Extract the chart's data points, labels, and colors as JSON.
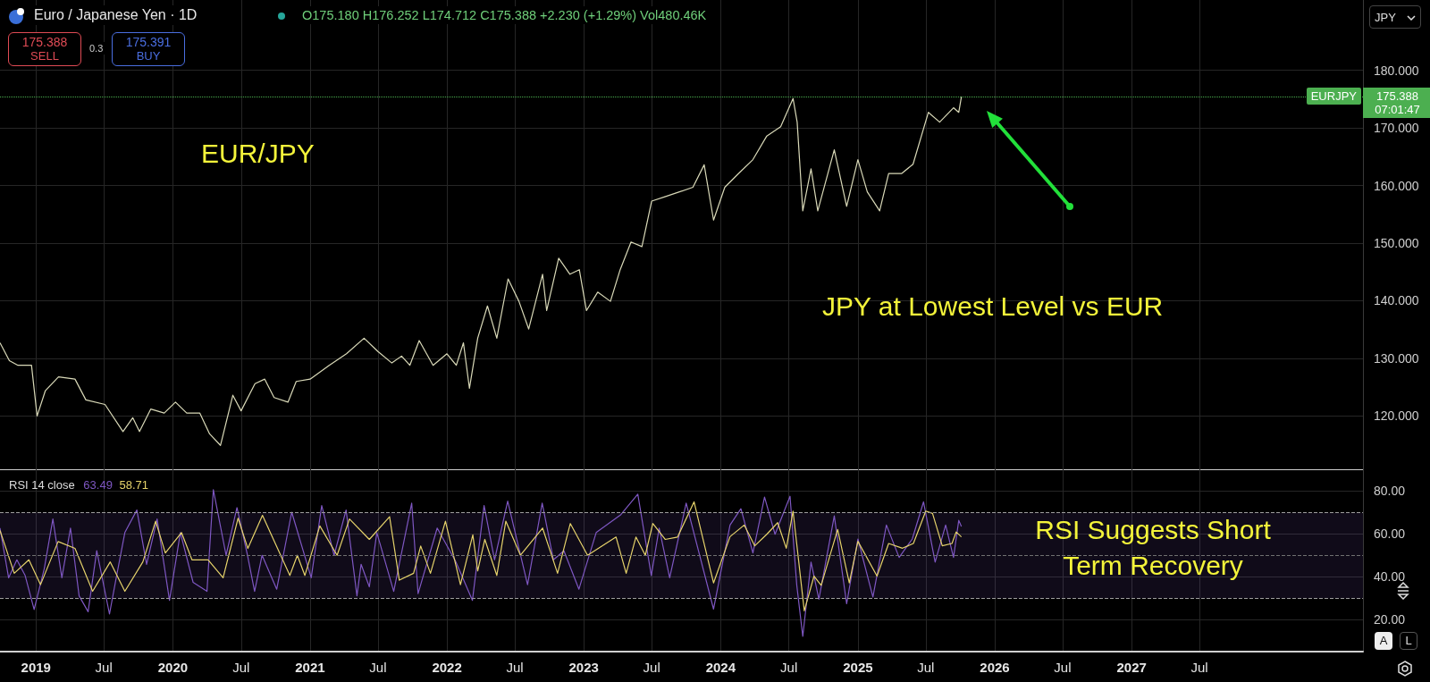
{
  "chart_data": [
    {
      "type": "line",
      "color": "#d9d9b8",
      "line_style": "solid",
      "grid": true,
      "tick_labels": "y",
      "xlim": [
        "2018-09-27",
        "2028-09-09"
      ],
      "xticks": [
        {
          "value": "2019-01-01",
          "label": null
        },
        {
          "value": "2019-07-01",
          "label": null
        },
        {
          "value": "2020-01-01",
          "label": null
        },
        {
          "value": "2020-07-01",
          "label": null
        },
        {
          "value": "2021-01-01",
          "label": null
        },
        {
          "value": "2021-07-01",
          "label": null
        },
        {
          "value": "2022-01-01",
          "label": null
        },
        {
          "value": "2022-07-01",
          "label": null
        },
        {
          "value": "2023-01-01",
          "label": null
        },
        {
          "value": "2023-07-01",
          "label": null
        },
        {
          "value": "2024-01-01",
          "label": null
        },
        {
          "value": "2024-07-01",
          "label": null
        },
        {
          "value": "2025-01-01",
          "label": null
        },
        {
          "value": "2025-07-01",
          "label": null
        },
        {
          "value": "2026-01-01",
          "label": null
        },
        {
          "value": "2026-07-01",
          "label": null
        },
        {
          "value": "2027-01-01",
          "label": null
        },
        {
          "value": "2027-07-01",
          "label": null
        }
      ],
      "ylim": [
        110.6,
        192.2
      ],
      "yticks": [
        {
          "value": 120,
          "label": "120.000"
        },
        {
          "value": 130,
          "label": "130.000"
        },
        {
          "value": 140,
          "label": "140.000"
        },
        {
          "value": 150,
          "label": "150.000"
        },
        {
          "value": 160,
          "label": "160.000"
        },
        {
          "value": 170,
          "label": "170.000"
        },
        {
          "value": 180,
          "label": "180.000"
        }
      ],
      "x": [
        "2018-09-27",
        "2018-10-22",
        "2018-11-14",
        "2018-12-20",
        "2019-01-04",
        "2019-01-26",
        "2019-03-02",
        "2019-04-15",
        "2019-05-14",
        "2019-07-04",
        "2019-08-21",
        "2019-09-16",
        "2019-10-04",
        "2019-11-03",
        "2019-12-09",
        "2020-01-08",
        "2020-02-07",
        "2020-03-13",
        "2020-04-08",
        "2020-05-07",
        "2020-06-09",
        "2020-07-01",
        "2020-08-07",
        "2020-09-02",
        "2020-09-27",
        "2020-11-03",
        "2020-11-25",
        "2021-01-01",
        "2021-02-21",
        "2021-04-08",
        "2021-05-25",
        "2021-07-01",
        "2021-08-07",
        "2021-09-02",
        "2021-09-24",
        "2021-10-19",
        "2021-11-25",
        "2022-01-01",
        "2022-01-26",
        "2022-02-14",
        "2022-03-02",
        "2022-03-24",
        "2022-04-19",
        "2022-05-14",
        "2022-06-13",
        "2022-07-12",
        "2022-08-07",
        "2022-09-13",
        "2022-09-24",
        "2022-10-26",
        "2022-11-25",
        "2022-12-20",
        "2023-01-08",
        "2023-02-07",
        "2023-03-13",
        "2023-04-08",
        "2023-05-07",
        "2023-06-05",
        "2023-07-01",
        "2023-08-07",
        "2023-09-13",
        "2023-10-19",
        "2023-11-18",
        "2023-12-13",
        "2024-01-12",
        "2024-02-18",
        "2024-03-27",
        "2024-05-03",
        "2024-06-09",
        "2024-07-12",
        "2024-07-23",
        "2024-08-07",
        "2024-08-29",
        "2024-09-16",
        "2024-10-30",
        "2024-12-02",
        "2025-01-01",
        "2025-01-26",
        "2025-02-28",
        "2025-03-24",
        "2025-04-28",
        "2025-05-28",
        "2025-07-08",
        "2025-08-07",
        "2025-09-13",
        "2025-09-27",
        "2025-10-04"
      ],
      "values": [
        132.7,
        129.6,
        128.8,
        128.8,
        120.0,
        124.4,
        126.8,
        126.4,
        122.8,
        122.0,
        117.3,
        119.7,
        117.3,
        121.2,
        120.5,
        122.4,
        120.5,
        120.5,
        116.9,
        114.9,
        123.6,
        120.9,
        125.6,
        126.4,
        123.2,
        122.4,
        126.0,
        126.4,
        128.8,
        130.8,
        133.5,
        131.2,
        129.2,
        130.4,
        128.8,
        133.1,
        128.8,
        130.8,
        128.8,
        132.7,
        124.8,
        133.5,
        139.1,
        133.5,
        143.8,
        139.9,
        135.1,
        144.6,
        138.3,
        147.4,
        144.6,
        145.4,
        138.3,
        141.5,
        139.9,
        145.4,
        150.2,
        149.4,
        157.3,
        158.1,
        158.9,
        159.7,
        163.6,
        154.0,
        159.7,
        162.1,
        164.5,
        168.6,
        170.2,
        175.1,
        171.0,
        155.6,
        162.9,
        155.6,
        166.2,
        156.4,
        164.5,
        158.9,
        155.6,
        162.1,
        162.1,
        163.7,
        172.7,
        171.0,
        173.5,
        172.7,
        175.4
      ],
      "ref_lines": [
        {
          "axis": "y",
          "value": 175.388,
          "label": "EURJPY",
          "color": "#4caf50",
          "line_style": "dotted"
        }
      ],
      "annotations": [
        "Euro / Japanese Yen · 1D",
        "O175.180 H176.252 L174.712 C175.388 +2.230 (+1.29%) Vol480.46K",
        "175.388",
        "SELL",
        "0.3",
        "175.391",
        "BUY",
        "JPY",
        "EUR/JPY",
        "JPY at Lowest Level vs EUR",
        "07:01:47"
      ]
    },
    {
      "type": "line",
      "grid": true,
      "line_style": "solid",
      "xlim": [
        "2018-09-27",
        "2028-09-09"
      ],
      "xticks": [
        {
          "value": "2019-01-01",
          "label": "2019"
        },
        {
          "value": "2019-07-01",
          "label": "Jul"
        },
        {
          "value": "2020-01-01",
          "label": "2020"
        },
        {
          "value": "2020-07-01",
          "label": "Jul"
        },
        {
          "value": "2021-01-01",
          "label": "2021"
        },
        {
          "value": "2021-07-01",
          "label": "Jul"
        },
        {
          "value": "2022-01-01",
          "label": "2022"
        },
        {
          "value": "2022-07-01",
          "label": "Jul"
        },
        {
          "value": "2023-01-01",
          "label": "2023"
        },
        {
          "value": "2023-07-01",
          "label": "Jul"
        },
        {
          "value": "2024-01-01",
          "label": "2024"
        },
        {
          "value": "2024-07-01",
          "label": "Jul"
        },
        {
          "value": "2025-01-01",
          "label": "2025"
        },
        {
          "value": "2025-07-01",
          "label": "Jul"
        },
        {
          "value": "2026-01-01",
          "label": "2026"
        },
        {
          "value": "2026-07-01",
          "label": "Jul"
        },
        {
          "value": "2027-01-01",
          "label": "2027"
        },
        {
          "value": "2027-07-01",
          "label": "Jul"
        }
      ],
      "ylim": [
        5.2,
        90.2
      ],
      "yticks": [
        {
          "value": 20,
          "label": "20.00"
        },
        {
          "value": 40,
          "label": "40.00"
        },
        {
          "value": 60,
          "label": "60.00"
        },
        {
          "value": 80,
          "label": "80.00"
        }
      ],
      "series": [
        {
          "color": "#7e57c2",
          "x": [
            "2018-09-27",
            "2018-10-20",
            "2018-11-11",
            "2018-12-03",
            "2018-12-27",
            "2019-01-23",
            "2019-02-15",
            "2019-03-11",
            "2019-04-03",
            "2019-04-26",
            "2019-05-20",
            "2019-06-12",
            "2019-07-16",
            "2019-08-03",
            "2019-08-26",
            "2019-09-27",
            "2019-10-23",
            "2019-11-20",
            "2019-12-23",
            "2020-01-21",
            "2020-02-24",
            "2020-04-01",
            "2020-04-18",
            "2020-05-22",
            "2020-06-20",
            "2020-07-18",
            "2020-08-06",
            "2020-08-26",
            "2020-10-04",
            "2020-11-13",
            "2021-01-04",
            "2021-02-01",
            "2021-03-06",
            "2021-04-07",
            "2021-05-06",
            "2021-05-17",
            "2021-06-08",
            "2021-06-28",
            "2021-08-12",
            "2021-09-29",
            "2021-10-16",
            "2021-12-06",
            "2022-01-25",
            "2022-03-10",
            "2022-04-10",
            "2022-05-08",
            "2022-06-12",
            "2022-08-04",
            "2022-09-12",
            "2022-10-12",
            "2022-11-09",
            "2022-12-19",
            "2023-02-03",
            "2023-04-10",
            "2023-05-25",
            "2023-06-30",
            "2023-07-21",
            "2023-08-18",
            "2023-10-01",
            "2023-12-13",
            "2024-01-26",
            "2024-02-24",
            "2024-03-27",
            "2024-04-27",
            "2024-05-25",
            "2024-07-04",
            "2024-07-22",
            "2024-08-07",
            "2024-08-29",
            "2024-09-19",
            "2024-10-30",
            "2024-12-02",
            "2025-01-01",
            "2025-02-10",
            "2025-03-18",
            "2025-04-21",
            "2025-05-26",
            "2025-06-25",
            "2025-07-26",
            "2025-08-23",
            "2025-09-13",
            "2025-09-27",
            "2025-10-04"
          ],
          "values": [
            62.8,
            39.6,
            48.0,
            40.7,
            24.8,
            43.8,
            67.0,
            39.6,
            62.8,
            31.2,
            23.8,
            52.2,
            22.7,
            39.6,
            60.7,
            71.2,
            45.9,
            67.0,
            29.1,
            60.7,
            37.5,
            33.3,
            80.7,
            50.1,
            72.3,
            50.1,
            33.3,
            50.1,
            34.3,
            70.2,
            39.6,
            73.3,
            50.1,
            71.2,
            31.2,
            45.9,
            35.4,
            60.7,
            33.3,
            74.4,
            32.2,
            62.8,
            47.0,
            29.1,
            73.3,
            48.0,
            75.4,
            36.4,
            74.4,
            48.0,
            52.2,
            34.3,
            60.7,
            69.1,
            78.6,
            40.7,
            62.8,
            39.6,
            74.4,
            25.0,
            64.2,
            71.8,
            51.2,
            77.2,
            59.9,
            77.6,
            36.1,
            12.3,
            46.9,
            29.6,
            68.5,
            27.5,
            57.7,
            30.7,
            64.2,
            49.1,
            57.7,
            75.0,
            46.9,
            64.2,
            49.1,
            66.4,
            63.5
          ]
        },
        {
          "color": "#e6d36b",
          "x": [
            "2018-09-27",
            "2018-11-04",
            "2018-12-13",
            "2019-01-13",
            "2019-03-01",
            "2019-04-15",
            "2019-06-01",
            "2019-07-18",
            "2019-08-26",
            "2019-10-13",
            "2019-11-16",
            "2019-12-12",
            "2020-01-24",
            "2020-02-21",
            "2020-04-04",
            "2020-05-14",
            "2020-06-23",
            "2020-07-19",
            "2020-08-27",
            "2020-11-08",
            "2020-11-28",
            "2020-12-18",
            "2021-01-27",
            "2021-03-14",
            "2021-04-16",
            "2021-06-08",
            "2021-08-01",
            "2021-08-27",
            "2021-10-04",
            "2021-10-23",
            "2021-11-18",
            "2021-12-28",
            "2022-02-06",
            "2022-03-11",
            "2022-03-24",
            "2022-04-12",
            "2022-05-14",
            "2022-06-07",
            "2022-07-16",
            "2022-09-13",
            "2022-10-23",
            "2022-11-26",
            "2023-01-11",
            "2023-03-28",
            "2023-04-24",
            "2023-05-20",
            "2023-06-14",
            "2023-07-04",
            "2023-08-06",
            "2023-09-08",
            "2023-10-22",
            "2023-12-13",
            "2024-01-26",
            "2024-03-04",
            "2024-04-01",
            "2024-05-03",
            "2024-06-01",
            "2024-06-24",
            "2024-07-12",
            "2024-08-11",
            "2024-09-06",
            "2024-09-25",
            "2024-11-08",
            "2024-12-09",
            "2025-01-01",
            "2025-02-21",
            "2025-03-24",
            "2025-04-30",
            "2025-05-29",
            "2025-07-01",
            "2025-07-19",
            "2025-08-14",
            "2025-09-09",
            "2025-09-20",
            "2025-10-04"
          ],
          "values": [
            61.7,
            41.7,
            48.0,
            36.4,
            56.5,
            53.3,
            33.3,
            47.0,
            33.3,
            47.0,
            66.0,
            51.2,
            60.7,
            48.0,
            48.0,
            39.6,
            67.4,
            53.3,
            68.7,
            40.7,
            50.1,
            40.7,
            63.8,
            50.1,
            67.0,
            57.5,
            68.1,
            38.5,
            41.7,
            54.4,
            41.7,
            66.0,
            36.4,
            59.6,
            42.8,
            57.5,
            40.7,
            66.0,
            50.1,
            62.8,
            41.7,
            64.9,
            50.1,
            58.6,
            41.7,
            58.6,
            50.1,
            64.9,
            57.5,
            58.6,
            75.0,
            37.2,
            58.8,
            64.2,
            54.5,
            59.9,
            65.3,
            53.4,
            70.7,
            24.2,
            40.4,
            36.1,
            62.1,
            37.2,
            56.6,
            40.4,
            55.6,
            53.4,
            55.6,
            70.7,
            69.6,
            54.5,
            55.6,
            61.0,
            58.7
          ]
        }
      ],
      "ref_lines": [
        {
          "axis": "y",
          "value": 70,
          "color": "#9e9e9e",
          "line_style": "dashed"
        },
        {
          "axis": "y",
          "value": 50,
          "color": "#707070",
          "line_style": "dashed"
        },
        {
          "axis": "y",
          "value": 30,
          "color": "#9e9e9e",
          "line_style": "dashed"
        }
      ],
      "bands": [
        {
          "axis": "y",
          "from": 30,
          "to": 70,
          "color": "#7e57c2"
        }
      ],
      "annotations": [
        "RSI 14 close",
        "63.49",
        "58.71",
        "RSI Suggests Short Term Recovery",
        "A",
        "L"
      ]
    }
  ]
}
